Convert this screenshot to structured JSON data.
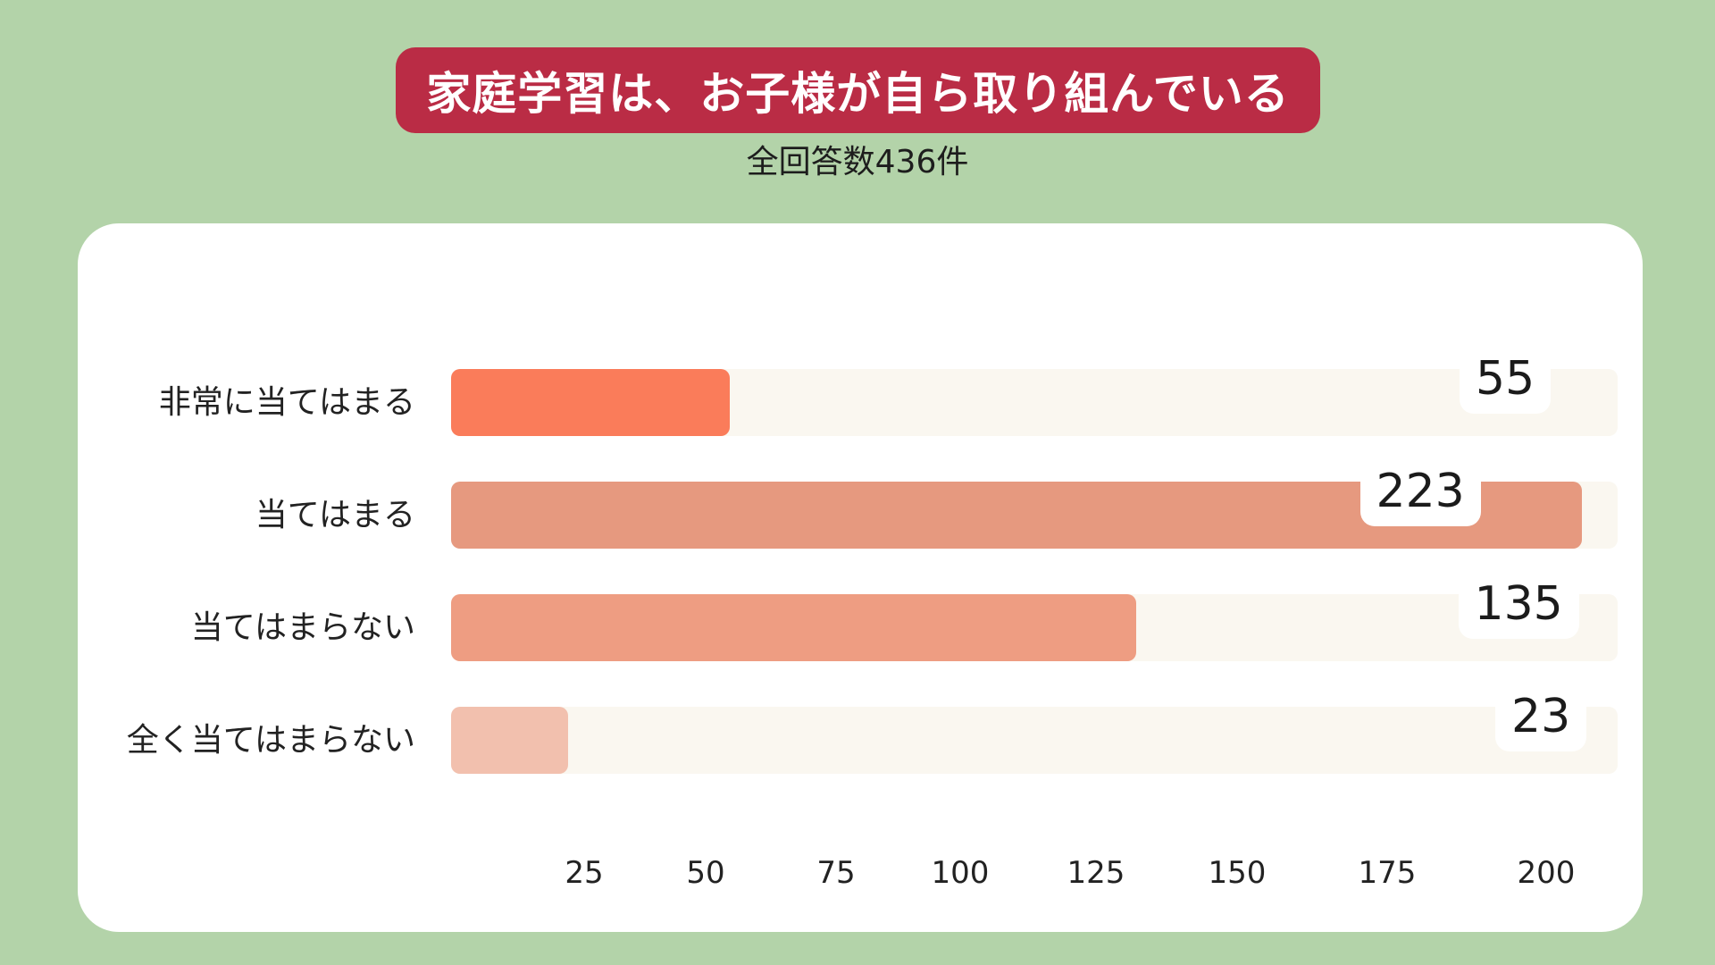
{
  "title": "家庭学習は、お子様が自ら取り組んでいる",
  "subtitle": "全回答数436件",
  "colors": {
    "background": "#b3d3a9",
    "title_bg": "#ba2c45",
    "track": "#faf7f0",
    "bars": [
      "#fa7c5a",
      "#e6997f",
      "#ee9d82",
      "#f2c0ae"
    ]
  },
  "chart_data": {
    "type": "bar",
    "orientation": "horizontal",
    "categories": [
      "非常に当てはまる",
      "当てはまる",
      "当てはまらない",
      "全く当てはまらない"
    ],
    "values": [
      55,
      223,
      135,
      23
    ],
    "value_labels": [
      "55",
      "223",
      "135",
      "23"
    ],
    "x_ticks": [
      "25",
      "50",
      "75",
      "100",
      "125",
      "150",
      "175",
      "200"
    ],
    "xlim": [
      0,
      230
    ],
    "grid": false
  }
}
